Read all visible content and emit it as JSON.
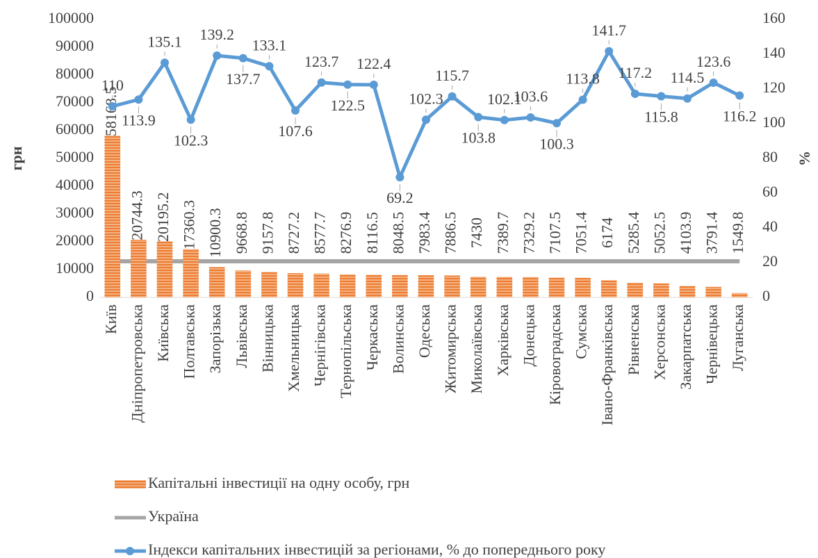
{
  "chart_data": {
    "type": "bar-line",
    "y_label": "грн",
    "y2_label": "%",
    "categories": [
      "Київ",
      "Дніпропетровська",
      "Київська",
      "Полтавська",
      "Запорізька",
      "Львівська",
      "Вінницька",
      "Хмельницька",
      "Чернігівська",
      "Тернопільська",
      "Черкаська",
      "Волинська",
      "Одеська",
      "Житомирська",
      "Миколаївська",
      "Харківська",
      "Донецька",
      "Кіровоградська",
      "Сумська",
      "Івано-Франківська",
      "Рівненська",
      "Херсонська",
      "Закарпатська",
      "Чернівецька",
      "Луганська"
    ],
    "series": [
      {
        "name": "Капітальні інвестиції на одну особу, грн",
        "type": "bar",
        "color": "#ed7d31",
        "values": [
          58168.5,
          20744.3,
          20195.2,
          17360.3,
          10900.3,
          9668.8,
          9157.8,
          8727.2,
          8577.7,
          8276.9,
          8116.5,
          8048.5,
          7983.4,
          7886.5,
          7430,
          7389.7,
          7329.2,
          7107.5,
          7051.4,
          6174,
          5285.4,
          5052.5,
          4103.9,
          3791.4,
          1549.8
        ]
      },
      {
        "name": "Україна",
        "type": "line",
        "color": "#a5a5a5",
        "values": [
          13000,
          13000,
          13000,
          13000,
          13000,
          13000,
          13000,
          13000,
          13000,
          13000,
          13000,
          13000,
          13000,
          13000,
          13000,
          13000,
          13000,
          13000,
          13000,
          13000,
          13000,
          13000,
          13000,
          13000,
          13000
        ]
      },
      {
        "name": "Індекси капітальних інвестицій за регіонами, % до  попереднього року",
        "type": "line",
        "axis": "y2",
        "color": "#5b9bd5",
        "markers": true,
        "values": [
          110,
          113.9,
          135.1,
          102.3,
          139.2,
          137.7,
          133.1,
          107.6,
          123.7,
          122.5,
          122.4,
          69.2,
          102.3,
          115.7,
          103.8,
          102.1,
          103.6,
          100.3,
          113.8,
          141.7,
          117.2,
          115.8,
          114.5,
          123.6,
          116.2
        ]
      }
    ],
    "ylim": [
      0,
      100000
    ],
    "yticks": [
      0,
      10000,
      20000,
      30000,
      40000,
      50000,
      60000,
      70000,
      80000,
      90000,
      100000
    ],
    "y2lim": [
      0,
      160
    ],
    "y2ticks": [
      0,
      20,
      40,
      60,
      80,
      100,
      120,
      140,
      160
    ],
    "legend": "bottom"
  }
}
